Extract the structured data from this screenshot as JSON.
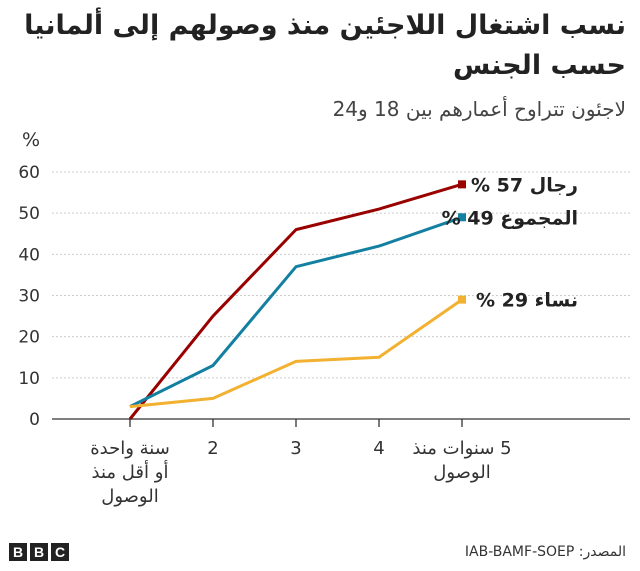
{
  "title": "نسب اشتغال اللاجئين منذ وصولهم إلى ألمانيا حسب الجنس",
  "subtitle": "لاجئون تتراوح أعمارهم بين 18 و24",
  "source": "المصدر: IAB-BAMF-SOEP",
  "logo_text": "BBC",
  "chart_data": {
    "type": "line",
    "ylabel": "%",
    "ylim": [
      0,
      60
    ],
    "yticks": [
      "0",
      "10",
      "20",
      "30",
      "40",
      "50",
      "60"
    ],
    "grid": true,
    "categories": [
      [
        "سنة واحدة",
        "أو أقل منذ",
        "الوصول"
      ],
      [
        "2"
      ],
      [
        "3"
      ],
      [
        "4"
      ],
      [
        "5 سنوات منذ",
        "الوصول"
      ]
    ],
    "series": [
      {
        "name": "رجال",
        "label": "رجال 57 %",
        "color": "#990000",
        "values": [
          0,
          25,
          46,
          51,
          57
        ]
      },
      {
        "name": "المجموع",
        "label": "المجموع 49 %",
        "color": "#1380a1",
        "values": [
          3,
          13,
          37,
          42,
          49
        ]
      },
      {
        "name": "نساء",
        "label": "نساء 29 %",
        "color": "#f2b130",
        "values": [
          3,
          5,
          14,
          15,
          29
        ]
      }
    ]
  }
}
